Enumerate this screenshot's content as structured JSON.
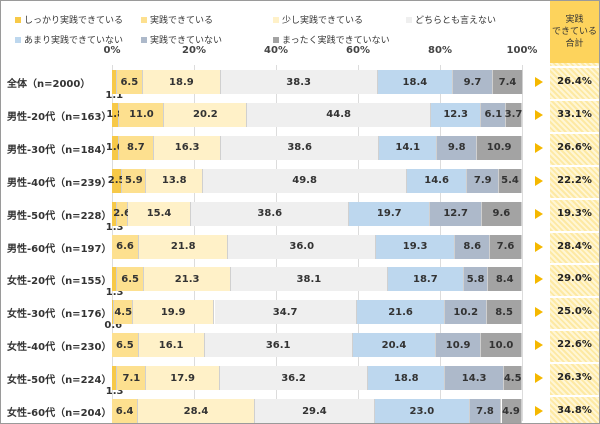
{
  "chart_data": {
    "type": "bar",
    "orientation": "horizontal-stacked-100",
    "legend": [
      "しっかり実践できている",
      "実践できている",
      "少し実践できている",
      "どちらとも言えない",
      "あまり実践できていない",
      "実践できていない",
      "まったく実践できていない"
    ],
    "colors": [
      "#f7c948",
      "#fde08f",
      "#fff1c8",
      "#efefef",
      "#bdd7ee",
      "#adb9ca",
      "#a3a3a3"
    ],
    "xticks": [
      "0%",
      "20%",
      "40%",
      "60%",
      "80%",
      "100%"
    ],
    "xlim": [
      0,
      100
    ],
    "summary_header": "実践\nできている\n合計",
    "categories": [
      "全体（n=2000）",
      "男性-20代（n=163）",
      "男性-30代（n=184）",
      "男性-40代（n=239）",
      "男性-50代（n=228）",
      "男性-60代（n=197）",
      "女性-20代（n=155）",
      "女性-30代（n=176）",
      "女性-40代（n=230）",
      "女性-50代（n=224）",
      "女性-60代（n=204）"
    ],
    "values": [
      [
        1.1,
        6.5,
        18.9,
        38.3,
        18.4,
        9.7,
        7.4
      ],
      [
        1.8,
        11.0,
        20.2,
        44.8,
        12.3,
        6.1,
        3.7
      ],
      [
        1.6,
        8.7,
        16.3,
        38.6,
        14.1,
        9.8,
        10.9
      ],
      [
        2.5,
        5.9,
        13.8,
        49.8,
        14.6,
        7.9,
        5.4
      ],
      [
        1.3,
        2.6,
        15.4,
        38.6,
        19.7,
        12.7,
        9.6
      ],
      [
        0,
        6.6,
        21.8,
        36.0,
        19.3,
        8.6,
        7.6
      ],
      [
        1.3,
        6.5,
        21.3,
        38.1,
        18.7,
        5.8,
        8.4
      ],
      [
        0.6,
        4.5,
        19.9,
        34.7,
        21.6,
        10.2,
        8.5
      ],
      [
        0,
        6.5,
        16.1,
        36.1,
        20.4,
        10.9,
        10.0
      ],
      [
        1.3,
        7.1,
        17.9,
        36.2,
        18.8,
        14.3,
        4.5
      ],
      [
        0,
        6.4,
        28.4,
        29.4,
        23.0,
        7.8,
        4.9
      ]
    ],
    "totals": [
      "26.4%",
      "33.1%",
      "26.6%",
      "22.2%",
      "19.3%",
      "28.4%",
      "29.0%",
      "25.0%",
      "22.6%",
      "26.3%",
      "34.8%"
    ]
  }
}
